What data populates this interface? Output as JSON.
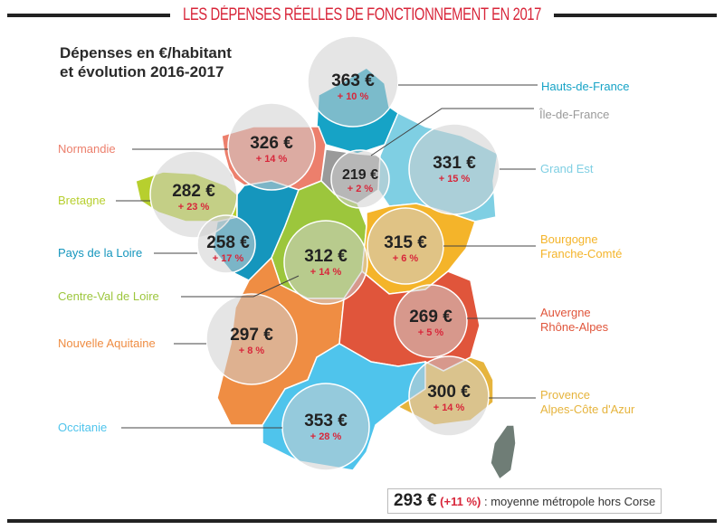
{
  "title": "LES DÉPENSES RÉELLES DE FONCTIONNEMENT EN 2017",
  "subtitle": [
    "Dépenses en €/habitant",
    "et évolution 2016-2017"
  ],
  "regions": [
    {
      "name": "Hauts-de-France",
      "value": "363 €",
      "change": "+ 10 %",
      "color": "#16a3c6"
    },
    {
      "name": "Île-de-France",
      "value": "219 €",
      "change": "+ 2 %",
      "color": "#9a9a9a"
    },
    {
      "name": "Normandie",
      "value": "326 €",
      "change": "+ 14 %",
      "color": "#ec7f6c"
    },
    {
      "name": "Grand Est",
      "value": "331 €",
      "change": "+ 15 %",
      "color": "#7fcfe3"
    },
    {
      "name": "Bretagne",
      "value": "282 €",
      "change": "+ 23 %",
      "color": "#b7cf2e"
    },
    {
      "name": "Pays de la Loire",
      "value": "258 €",
      "change": "+ 17 %",
      "color": "#1596bd"
    },
    {
      "name": "Centre-Val de Loire",
      "value": "312 €",
      "change": "+ 14 %",
      "color": "#9cc63c"
    },
    {
      "name": "Bourgogne Franche-Comté",
      "label_lines": [
        "Bourgogne",
        "Franche-Comté"
      ],
      "value": "315 €",
      "change": "+ 6 %",
      "color": "#f4b42a"
    },
    {
      "name": "Nouvelle Aquitaine",
      "value": "297 €",
      "change": "+ 8 %",
      "color": "#ef8d43"
    },
    {
      "name": "Auvergne Rhône-Alpes",
      "label_lines": [
        "Auvergne",
        "Rhône-Alpes"
      ],
      "value": "269 €",
      "change": "+ 5 %",
      "color": "#e0553b"
    },
    {
      "name": "Provence Alpes-Côte d'Azur",
      "label_lines": [
        "Provence",
        "Alpes-Côte d'Azur"
      ],
      "value": "300 €",
      "change": "+ 14 %",
      "color": "#e6b43d"
    },
    {
      "name": "Occitanie",
      "value": "353 €",
      "change": "+ 28 %",
      "color": "#4fc4ec"
    }
  ],
  "average": {
    "value": "293 €",
    "change": "(+11 %)",
    "text": ": moyenne métropole hors Corse"
  }
}
